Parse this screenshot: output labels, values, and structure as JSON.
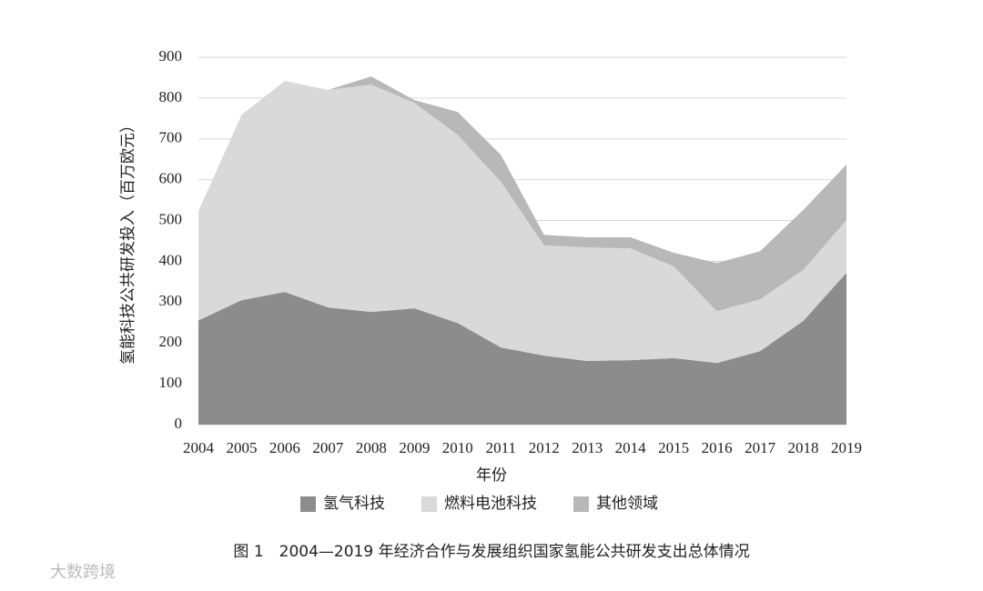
{
  "chart_data": {
    "type": "stacked-area",
    "y_label": "氢能科技公共研发投入（百万欧元）",
    "x_label": "年份",
    "caption": "图 1　2004—2019 年经济合作与发展组织国家氢能公共研发支出总体情况",
    "watermark": "大数跨境",
    "categories": [
      "2004",
      "2005",
      "2006",
      "2007",
      "2008",
      "2009",
      "2010",
      "2011",
      "2012",
      "2013",
      "2014",
      "2015",
      "2016",
      "2017",
      "2018",
      "2019"
    ],
    "series": [
      {
        "name": "氢气科技",
        "color": "#8c8c8c",
        "values": [
          255,
          305,
          325,
          287,
          276,
          285,
          249,
          189,
          169,
          156,
          158,
          163,
          151,
          180,
          254,
          372
        ]
      },
      {
        "name": "燃料电池科技",
        "color": "#d9d9d9",
        "values": [
          268,
          454,
          517,
          533,
          557,
          503,
          461,
          406,
          270,
          278,
          274,
          225,
          127,
          127,
          125,
          129
        ]
      },
      {
        "name": "其他领域",
        "color": "#b8b8b8",
        "values": [
          0,
          0,
          0,
          0,
          20,
          7,
          56,
          66,
          26,
          25,
          27,
          33,
          118,
          118,
          147,
          136
        ]
      }
    ],
    "ylim": [
      0,
      900
    ],
    "yticks": [
      0,
      100,
      200,
      300,
      400,
      500,
      600,
      700,
      800,
      900
    ],
    "grid": true,
    "legend": "bottom"
  }
}
